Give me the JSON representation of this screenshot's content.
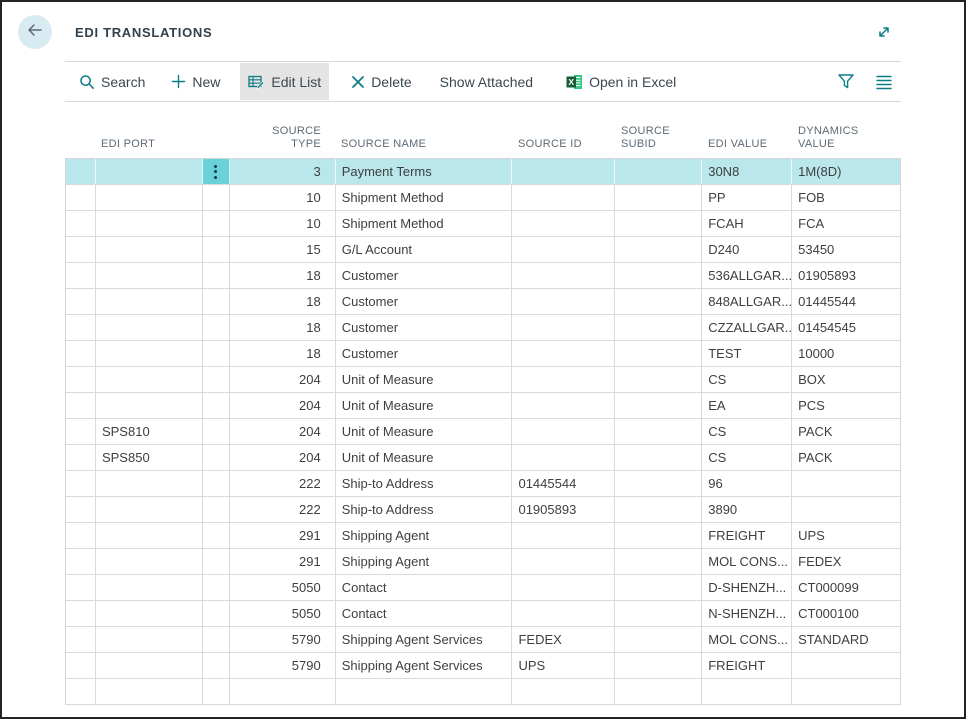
{
  "header": {
    "title": "EDI TRANSLATIONS"
  },
  "toolbar": {
    "search_label": "Search",
    "new_label": "New",
    "edit_list_label": "Edit List",
    "delete_label": "Delete",
    "show_attached_label": "Show Attached",
    "open_in_excel_label": "Open in Excel",
    "active_item": "Edit List"
  },
  "table": {
    "columns": [
      {
        "key": "indicator",
        "label": "",
        "align": "left"
      },
      {
        "key": "edi_port",
        "label": "EDI PORT",
        "align": "left"
      },
      {
        "key": "row_menu",
        "label": "",
        "align": "left"
      },
      {
        "key": "source_type",
        "label": "SOURCE\nTYPE",
        "align": "right"
      },
      {
        "key": "source_name",
        "label": "SOURCE NAME",
        "align": "left"
      },
      {
        "key": "source_id",
        "label": "SOURCE ID",
        "align": "left"
      },
      {
        "key": "source_subid",
        "label": "SOURCE\nSUBID",
        "align": "left"
      },
      {
        "key": "edi_value",
        "label": "EDI VALUE",
        "align": "left"
      },
      {
        "key": "dynamics_value",
        "label": "DYNAMICS\nVALUE",
        "align": "left"
      }
    ],
    "selected_row_index": 0,
    "rows": [
      {
        "edi_port": "",
        "source_type": "3",
        "source_name": "Payment Terms",
        "source_id": "",
        "source_subid": "",
        "edi_value": "30N8",
        "dynamics_value": "1M(8D)"
      },
      {
        "edi_port": "",
        "source_type": "10",
        "source_name": "Shipment Method",
        "source_id": "",
        "source_subid": "",
        "edi_value": "PP",
        "dynamics_value": "FOB"
      },
      {
        "edi_port": "",
        "source_type": "10",
        "source_name": "Shipment Method",
        "source_id": "",
        "source_subid": "",
        "edi_value": "FCAH",
        "dynamics_value": "FCA"
      },
      {
        "edi_port": "",
        "source_type": "15",
        "source_name": "G/L Account",
        "source_id": "",
        "source_subid": "",
        "edi_value": "D240",
        "dynamics_value": "53450"
      },
      {
        "edi_port": "",
        "source_type": "18",
        "source_name": "Customer",
        "source_id": "",
        "source_subid": "",
        "edi_value": "536ALLGAR...",
        "dynamics_value": "01905893"
      },
      {
        "edi_port": "",
        "source_type": "18",
        "source_name": "Customer",
        "source_id": "",
        "source_subid": "",
        "edi_value": "848ALLGAR...",
        "dynamics_value": "01445544"
      },
      {
        "edi_port": "",
        "source_type": "18",
        "source_name": "Customer",
        "source_id": "",
        "source_subid": "",
        "edi_value": "CZZALLGAR...",
        "dynamics_value": "01454545"
      },
      {
        "edi_port": "",
        "source_type": "18",
        "source_name": "Customer",
        "source_id": "",
        "source_subid": "",
        "edi_value": "TEST",
        "dynamics_value": "10000"
      },
      {
        "edi_port": "",
        "source_type": "204",
        "source_name": "Unit of Measure",
        "source_id": "",
        "source_subid": "",
        "edi_value": "CS",
        "dynamics_value": "BOX"
      },
      {
        "edi_port": "",
        "source_type": "204",
        "source_name": "Unit of Measure",
        "source_id": "",
        "source_subid": "",
        "edi_value": "EA",
        "dynamics_value": "PCS"
      },
      {
        "edi_port": "SPS810",
        "source_type": "204",
        "source_name": "Unit of Measure",
        "source_id": "",
        "source_subid": "",
        "edi_value": "CS",
        "dynamics_value": "PACK"
      },
      {
        "edi_port": "SPS850",
        "source_type": "204",
        "source_name": "Unit of Measure",
        "source_id": "",
        "source_subid": "",
        "edi_value": "CS",
        "dynamics_value": "PACK"
      },
      {
        "edi_port": "",
        "source_type": "222",
        "source_name": "Ship-to Address",
        "source_id": "01445544",
        "source_subid": "",
        "edi_value": "96",
        "dynamics_value": ""
      },
      {
        "edi_port": "",
        "source_type": "222",
        "source_name": "Ship-to Address",
        "source_id": "01905893",
        "source_subid": "",
        "edi_value": "3890",
        "dynamics_value": ""
      },
      {
        "edi_port": "",
        "source_type": "291",
        "source_name": "Shipping Agent",
        "source_id": "",
        "source_subid": "",
        "edi_value": "FREIGHT",
        "dynamics_value": "UPS"
      },
      {
        "edi_port": "",
        "source_type": "291",
        "source_name": "Shipping Agent",
        "source_id": "",
        "source_subid": "",
        "edi_value": "MOL CONS...",
        "dynamics_value": "FEDEX"
      },
      {
        "edi_port": "",
        "source_type": "5050",
        "source_name": "Contact",
        "source_id": "",
        "source_subid": "",
        "edi_value": "D-SHENZH...",
        "dynamics_value": "CT000099"
      },
      {
        "edi_port": "",
        "source_type": "5050",
        "source_name": "Contact",
        "source_id": "",
        "source_subid": "",
        "edi_value": "N-SHENZH...",
        "dynamics_value": "CT000100"
      },
      {
        "edi_port": "",
        "source_type": "5790",
        "source_name": "Shipping Agent Services",
        "source_id": "FEDEX",
        "source_subid": "",
        "edi_value": "MOL CONS...",
        "dynamics_value": "STANDARD"
      },
      {
        "edi_port": "",
        "source_type": "5790",
        "source_name": "Shipping Agent Services",
        "source_id": "UPS",
        "source_subid": "",
        "edi_value": "FREIGHT",
        "dynamics_value": ""
      },
      {
        "edi_port": "",
        "source_type": "",
        "source_name": "",
        "source_id": "",
        "source_subid": "",
        "edi_value": "",
        "dynamics_value": ""
      }
    ]
  },
  "colors": {
    "accent_teal": "#0e7c87",
    "selected_row_bg": "#b9e7eb",
    "selected_menu_bg": "#69d2d9",
    "active_button_bg": "#e4e4e4",
    "back_circle_bg": "#d8eaf2",
    "excel_green_dark": "#185c37",
    "excel_green_light": "#33c481",
    "grid_line": "#dadada",
    "header_text": "#5d6a74",
    "body_text": "#3f3f3f",
    "title_text": "#31414d"
  }
}
